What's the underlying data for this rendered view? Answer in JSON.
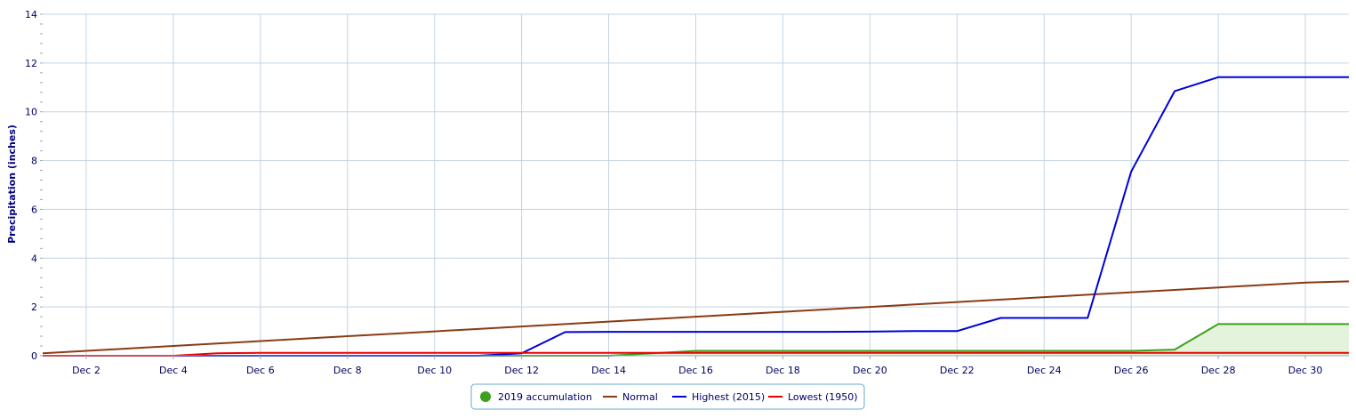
{
  "chart_data": {
    "type": "line",
    "title": "",
    "ylabel": "Precipitation (inches)",
    "xlabel": "",
    "ylim": [
      0,
      14
    ],
    "xlim": [
      1,
      31
    ],
    "y_ticks": [
      0,
      2,
      4,
      6,
      8,
      10,
      12,
      14
    ],
    "y_minor_step": 0.4,
    "x_ticks": [
      {
        "x": 2,
        "label": "Dec 2"
      },
      {
        "x": 4,
        "label": "Dec 4"
      },
      {
        "x": 6,
        "label": "Dec 6"
      },
      {
        "x": 8,
        "label": "Dec 8"
      },
      {
        "x": 10,
        "label": "Dec 10"
      },
      {
        "x": 12,
        "label": "Dec 12"
      },
      {
        "x": 14,
        "label": "Dec 14"
      },
      {
        "x": 16,
        "label": "Dec 16"
      },
      {
        "x": 18,
        "label": "Dec 18"
      },
      {
        "x": 20,
        "label": "Dec 20"
      },
      {
        "x": 22,
        "label": "Dec 22"
      },
      {
        "x": 24,
        "label": "Dec 24"
      },
      {
        "x": 26,
        "label": "Dec 26"
      },
      {
        "x": 28,
        "label": "Dec 28"
      },
      {
        "x": 30,
        "label": "Dec 30"
      }
    ],
    "grid": true,
    "legend_position": "bottom-center",
    "series": [
      {
        "name": "2019 accumulation",
        "color": "#3ca01e",
        "fill": "#e4f3dc",
        "area": true,
        "marker": "circle",
        "x": [
          1,
          2,
          3,
          4,
          5,
          6,
          7,
          8,
          9,
          10,
          11,
          12,
          13,
          14,
          15,
          16,
          17,
          18,
          19,
          20,
          21,
          22,
          23,
          24,
          25,
          26,
          27,
          28,
          29,
          30,
          31
        ],
        "y": [
          0,
          0,
          0,
          0,
          0,
          0,
          0,
          0,
          0,
          0,
          0,
          0,
          0,
          0,
          0.1,
          0.2,
          0.2,
          0.2,
          0.2,
          0.2,
          0.2,
          0.2,
          0.2,
          0.2,
          0.2,
          0.2,
          0.25,
          1.3,
          1.3,
          1.3,
          1.3
        ]
      },
      {
        "name": "Normal",
        "color": "#8b3a14",
        "area": false,
        "marker": "line",
        "x": [
          1,
          2,
          3,
          4,
          5,
          6,
          7,
          8,
          9,
          10,
          11,
          12,
          13,
          14,
          15,
          16,
          17,
          18,
          19,
          20,
          21,
          22,
          23,
          24,
          25,
          26,
          27,
          28,
          29,
          30,
          31
        ],
        "y": [
          0.1,
          0.2,
          0.3,
          0.4,
          0.5,
          0.6,
          0.7,
          0.8,
          0.9,
          1.0,
          1.1,
          1.2,
          1.3,
          1.4,
          1.5,
          1.6,
          1.7,
          1.8,
          1.9,
          2.0,
          2.1,
          2.2,
          2.3,
          2.4,
          2.5,
          2.6,
          2.7,
          2.8,
          2.9,
          3.0,
          3.05
        ]
      },
      {
        "name": "Highest (2015)",
        "color": "#0000d8",
        "area": false,
        "marker": "line",
        "x": [
          1,
          2,
          3,
          4,
          5,
          6,
          7,
          8,
          9,
          10,
          11,
          12,
          13,
          14,
          15,
          16,
          17,
          18,
          19,
          20,
          21,
          22,
          23,
          24,
          25,
          26,
          27,
          28,
          29,
          30,
          31
        ],
        "y": [
          0,
          0,
          0,
          0,
          0,
          0,
          0,
          0,
          0,
          0,
          0,
          0.1,
          0.97,
          0.98,
          0.98,
          0.98,
          0.98,
          0.98,
          0.98,
          0.99,
          1.01,
          1.01,
          1.55,
          1.55,
          1.55,
          7.55,
          10.85,
          11.42,
          11.42,
          11.42,
          11.42
        ]
      },
      {
        "name": "Lowest (1950)",
        "color": "#ee0000",
        "area": false,
        "marker": "line",
        "x": [
          1,
          2,
          3,
          4,
          5,
          6,
          7,
          8,
          9,
          10,
          11,
          12,
          13,
          14,
          15,
          16,
          17,
          18,
          19,
          20,
          21,
          22,
          23,
          24,
          25,
          26,
          27,
          28,
          29,
          30,
          31
        ],
        "y": [
          0,
          0,
          0,
          0,
          0.1,
          0.12,
          0.12,
          0.12,
          0.12,
          0.12,
          0.12,
          0.12,
          0.12,
          0.12,
          0.12,
          0.12,
          0.12,
          0.12,
          0.12,
          0.12,
          0.12,
          0.12,
          0.12,
          0.12,
          0.12,
          0.12,
          0.12,
          0.12,
          0.12,
          0.12,
          0.12
        ]
      }
    ]
  },
  "colors": {
    "grid": "#c3d4e3",
    "axis_text": "#000060",
    "legend_border": "#6aa8c8"
  }
}
